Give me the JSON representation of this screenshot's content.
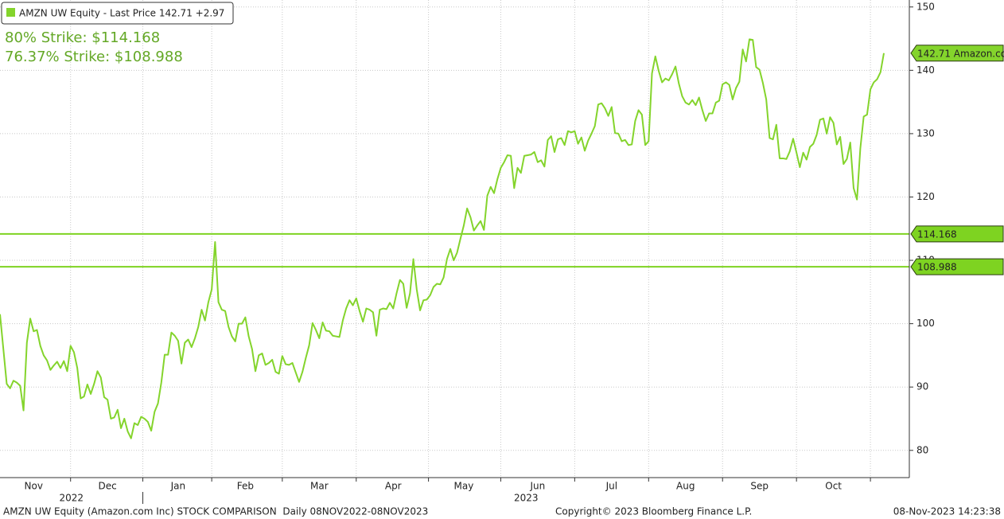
{
  "chart_data": {
    "type": "line",
    "ylim": [
      75.7,
      151.1
    ],
    "yticks": [
      80,
      90,
      100,
      110,
      120,
      130,
      140,
      150
    ],
    "grid": true,
    "categories": [
      null,
      null,
      null,
      null,
      null,
      null,
      null,
      null,
      null,
      null,
      "Nov",
      null,
      null,
      null,
      null,
      null,
      null,
      null,
      null,
      null,
      null,
      null,
      null,
      null,
      null,
      null,
      null,
      null,
      null,
      null,
      null,
      null,
      "Dec",
      null,
      null,
      null,
      null,
      null,
      null,
      null,
      null,
      null,
      null,
      null,
      null,
      null,
      null,
      null,
      null,
      null,
      null,
      null,
      null,
      "Jan",
      null,
      null,
      null,
      null,
      null,
      null,
      null,
      null,
      null,
      null,
      null,
      null,
      null,
      null,
      null,
      null,
      null,
      null,
      null,
      "Feb",
      null,
      null,
      null,
      null,
      null,
      null,
      null,
      null,
      null,
      null,
      null,
      null,
      null,
      null,
      null,
      null,
      null,
      null,
      null,
      null,
      null,
      "Mar",
      null,
      null,
      null,
      null,
      null,
      null,
      null,
      null,
      null,
      null,
      null,
      null,
      null,
      null,
      null,
      null,
      null,
      null,
      null,
      null,
      null,
      "Apr",
      null,
      null,
      null,
      null,
      null,
      null,
      null,
      null,
      null,
      null,
      null,
      null,
      null,
      null,
      null,
      null,
      null,
      null,
      null,
      null,
      "May",
      null,
      null,
      null,
      null,
      null,
      null,
      null,
      null,
      null,
      null,
      null,
      null,
      null,
      null,
      null,
      null,
      null,
      null,
      null,
      null,
      null,
      "Jun",
      null,
      null,
      null,
      null,
      null,
      null,
      null,
      null,
      null,
      null,
      null,
      null,
      null,
      null,
      null,
      null,
      null,
      null,
      null,
      null,
      null,
      "Jul",
      null,
      null,
      null,
      null,
      null,
      null,
      null,
      null,
      null,
      null,
      null,
      null,
      null,
      null,
      null,
      null,
      null,
      null,
      null,
      null,
      null,
      "Aug",
      null,
      null,
      null,
      null,
      null,
      null,
      null,
      null,
      null,
      null,
      null,
      null,
      null,
      null,
      null,
      null,
      null,
      null,
      null,
      null,
      null,
      "Sep",
      null,
      null,
      null,
      null,
      null,
      null,
      null,
      null,
      null,
      null,
      null,
      null,
      null,
      null,
      null,
      null,
      null,
      null,
      null,
      null,
      null,
      "Oct",
      null,
      null,
      null,
      null,
      null,
      null,
      null,
      null,
      null,
      null,
      null,
      null,
      null,
      null,
      null
    ],
    "years": [
      "2022",
      "2023"
    ],
    "series": [
      {
        "name": "AMZN UW Equity - Last Price 142.71 +2.97",
        "color": "#84d42c",
        "last_tag": "142.71 Amazon.co",
        "values": [
          101.5,
          96,
          90.5,
          89.8,
          91,
          90.7,
          90.2,
          86.3,
          97,
          100.8,
          98.8,
          99,
          96.5,
          95,
          94.2,
          92.7,
          93.4,
          94,
          93,
          94.1,
          92.5,
          96.5,
          95.5,
          93,
          88.2,
          88.5,
          90.4,
          88.9,
          90.5,
          92.5,
          91.5,
          88.4,
          88,
          85,
          85.2,
          86.4,
          83.5,
          85,
          83,
          81.9,
          84.3,
          84,
          85.3,
          85,
          84.5,
          83.1,
          86.1,
          87.4,
          90.7,
          95.1,
          95.1,
          98.6,
          98.1,
          97.3,
          93.7,
          97,
          97.5,
          96.3,
          97.7,
          99.5,
          102.2,
          100.5,
          103.4,
          105.4,
          112.9,
          103.4,
          102.2,
          102,
          99.5,
          98,
          97.2,
          100,
          100,
          101,
          98,
          96,
          92.5,
          95,
          95.3,
          93.5,
          93.8,
          94.3,
          92.4,
          92.1,
          94.9,
          93.6,
          93.5,
          93.8,
          92.3,
          90.8,
          92.4,
          94.6,
          96.6,
          100.1,
          99,
          97.7,
          100.2,
          98.9,
          98.8,
          98.1,
          98.0,
          97.9,
          100.5,
          102.4,
          103.7,
          102.9,
          104,
          102,
          100.3,
          102.4,
          102.2,
          101.8,
          98.1,
          102.2,
          102.4,
          102.3,
          103.3,
          102.4,
          104.8,
          106.9,
          106.3,
          102.5,
          104.8,
          110.2,
          105.4,
          102.1,
          103.7,
          103.8,
          104.5,
          105.8,
          106.3,
          106.2,
          107.3,
          110.2,
          111.8,
          110,
          111.2,
          113.4,
          115.5,
          118.2,
          116.8,
          114.7,
          115.5,
          116.2,
          114.8,
          120.2,
          121.6,
          120.6,
          122.8,
          124.6,
          125.5,
          126.6,
          126.5,
          121.4,
          124.6,
          123.8,
          126.5,
          126.6,
          126.7,
          127.1,
          125.5,
          125.8,
          124.8,
          129,
          129.6,
          127.1,
          129.1,
          129.3,
          128.2,
          130.4,
          130.2,
          130.4,
          128.4,
          129.4,
          127.3,
          128.9,
          130,
          131.2,
          134.6,
          134.8,
          134,
          132.8,
          134.2,
          130.1,
          130,
          128.8,
          129,
          128.2,
          128.3,
          132,
          133.7,
          133,
          128.2,
          128.8,
          139.5,
          142.2,
          139.9,
          138.1,
          138.7,
          138.4,
          139.4,
          140.6,
          137.9,
          135.9,
          134.9,
          134.6,
          135.3,
          134.5,
          135.7,
          133.7,
          132,
          133.2,
          133.2,
          134.9,
          135.2,
          137.8,
          138.1,
          137.7,
          135.4,
          137.2,
          138.2,
          143.3,
          141.4,
          144.9,
          144.8,
          140.5,
          140.1,
          138,
          135.4,
          129.3,
          129.1,
          131.4,
          126.1,
          126.1,
          126,
          127.2,
          129.2,
          127,
          124.7,
          127,
          125.9,
          127.9,
          128.4,
          129.8,
          132.2,
          132.4,
          130,
          132.6,
          131.7,
          128.3,
          129.5,
          125.2,
          126,
          128.6,
          121.4,
          119.6,
          127.7,
          132.7,
          133,
          137,
          138.1,
          138.6,
          139.7,
          142.71
        ]
      }
    ],
    "strikes": [
      {
        "label": "80% Strike: $114.168",
        "value": 114.168,
        "color": "#7ed321"
      },
      {
        "label": "76.37% Strike: $108.988",
        "value": 108.988,
        "color": "#7ed321"
      }
    ],
    "footer": {
      "left": "AMZN UW Equity (Amazon.com Inc) STOCK COMPARISON  Daily 08NOV2022-08NOV2023",
      "center": "Copyright© 2023 Bloomberg Finance L.P.",
      "right": "08-Nov-2023 14:23:38"
    }
  }
}
